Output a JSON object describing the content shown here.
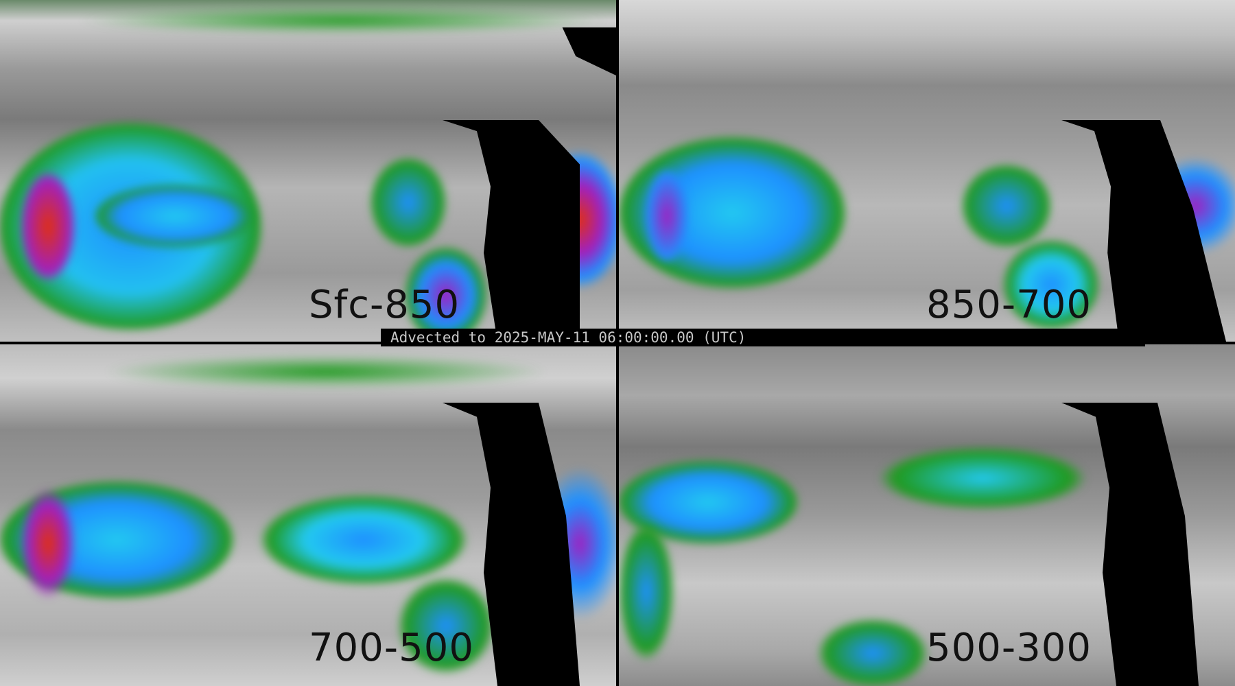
{
  "banner": {
    "text": "Advected to 2025-MAY-11 06:00:00.00 (UTC)"
  },
  "panels": [
    {
      "label": "Sfc-850"
    },
    {
      "label": "850-700"
    },
    {
      "label": "700-500"
    },
    {
      "label": "500-300"
    }
  ],
  "colors": {
    "green": "#1f9a1f",
    "blue": "#1e90ff",
    "cyan": "#22c8f0",
    "magenta": "#a020c0",
    "red": "#e03010",
    "background": "#000000"
  }
}
